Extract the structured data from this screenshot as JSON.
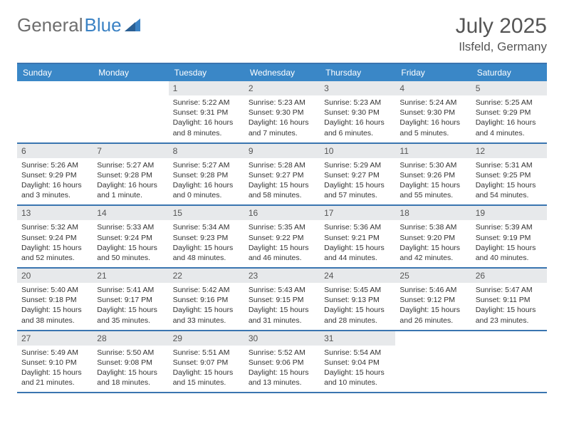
{
  "logo": {
    "part1": "General",
    "part2": "Blue"
  },
  "title": "July 2025",
  "location": "Ilsfeld, Germany",
  "colors": {
    "header_bg": "#3a87c7",
    "border": "#3a75b0",
    "daynum_bg": "#e7e9eb",
    "text": "#333333",
    "title_text": "#555555"
  },
  "dow": [
    "Sunday",
    "Monday",
    "Tuesday",
    "Wednesday",
    "Thursday",
    "Friday",
    "Saturday"
  ],
  "weeks": [
    [
      null,
      null,
      {
        "n": "1",
        "sr": "Sunrise: 5:22 AM",
        "ss": "Sunset: 9:31 PM",
        "dl1": "Daylight: 16 hours",
        "dl2": "and 8 minutes."
      },
      {
        "n": "2",
        "sr": "Sunrise: 5:23 AM",
        "ss": "Sunset: 9:30 PM",
        "dl1": "Daylight: 16 hours",
        "dl2": "and 7 minutes."
      },
      {
        "n": "3",
        "sr": "Sunrise: 5:23 AM",
        "ss": "Sunset: 9:30 PM",
        "dl1": "Daylight: 16 hours",
        "dl2": "and 6 minutes."
      },
      {
        "n": "4",
        "sr": "Sunrise: 5:24 AM",
        "ss": "Sunset: 9:30 PM",
        "dl1": "Daylight: 16 hours",
        "dl2": "and 5 minutes."
      },
      {
        "n": "5",
        "sr": "Sunrise: 5:25 AM",
        "ss": "Sunset: 9:29 PM",
        "dl1": "Daylight: 16 hours",
        "dl2": "and 4 minutes."
      }
    ],
    [
      {
        "n": "6",
        "sr": "Sunrise: 5:26 AM",
        "ss": "Sunset: 9:29 PM",
        "dl1": "Daylight: 16 hours",
        "dl2": "and 3 minutes."
      },
      {
        "n": "7",
        "sr": "Sunrise: 5:27 AM",
        "ss": "Sunset: 9:28 PM",
        "dl1": "Daylight: 16 hours",
        "dl2": "and 1 minute."
      },
      {
        "n": "8",
        "sr": "Sunrise: 5:27 AM",
        "ss": "Sunset: 9:28 PM",
        "dl1": "Daylight: 16 hours",
        "dl2": "and 0 minutes."
      },
      {
        "n": "9",
        "sr": "Sunrise: 5:28 AM",
        "ss": "Sunset: 9:27 PM",
        "dl1": "Daylight: 15 hours",
        "dl2": "and 58 minutes."
      },
      {
        "n": "10",
        "sr": "Sunrise: 5:29 AM",
        "ss": "Sunset: 9:27 PM",
        "dl1": "Daylight: 15 hours",
        "dl2": "and 57 minutes."
      },
      {
        "n": "11",
        "sr": "Sunrise: 5:30 AM",
        "ss": "Sunset: 9:26 PM",
        "dl1": "Daylight: 15 hours",
        "dl2": "and 55 minutes."
      },
      {
        "n": "12",
        "sr": "Sunrise: 5:31 AM",
        "ss": "Sunset: 9:25 PM",
        "dl1": "Daylight: 15 hours",
        "dl2": "and 54 minutes."
      }
    ],
    [
      {
        "n": "13",
        "sr": "Sunrise: 5:32 AM",
        "ss": "Sunset: 9:24 PM",
        "dl1": "Daylight: 15 hours",
        "dl2": "and 52 minutes."
      },
      {
        "n": "14",
        "sr": "Sunrise: 5:33 AM",
        "ss": "Sunset: 9:24 PM",
        "dl1": "Daylight: 15 hours",
        "dl2": "and 50 minutes."
      },
      {
        "n": "15",
        "sr": "Sunrise: 5:34 AM",
        "ss": "Sunset: 9:23 PM",
        "dl1": "Daylight: 15 hours",
        "dl2": "and 48 minutes."
      },
      {
        "n": "16",
        "sr": "Sunrise: 5:35 AM",
        "ss": "Sunset: 9:22 PM",
        "dl1": "Daylight: 15 hours",
        "dl2": "and 46 minutes."
      },
      {
        "n": "17",
        "sr": "Sunrise: 5:36 AM",
        "ss": "Sunset: 9:21 PM",
        "dl1": "Daylight: 15 hours",
        "dl2": "and 44 minutes."
      },
      {
        "n": "18",
        "sr": "Sunrise: 5:38 AM",
        "ss": "Sunset: 9:20 PM",
        "dl1": "Daylight: 15 hours",
        "dl2": "and 42 minutes."
      },
      {
        "n": "19",
        "sr": "Sunrise: 5:39 AM",
        "ss": "Sunset: 9:19 PM",
        "dl1": "Daylight: 15 hours",
        "dl2": "and 40 minutes."
      }
    ],
    [
      {
        "n": "20",
        "sr": "Sunrise: 5:40 AM",
        "ss": "Sunset: 9:18 PM",
        "dl1": "Daylight: 15 hours",
        "dl2": "and 38 minutes."
      },
      {
        "n": "21",
        "sr": "Sunrise: 5:41 AM",
        "ss": "Sunset: 9:17 PM",
        "dl1": "Daylight: 15 hours",
        "dl2": "and 35 minutes."
      },
      {
        "n": "22",
        "sr": "Sunrise: 5:42 AM",
        "ss": "Sunset: 9:16 PM",
        "dl1": "Daylight: 15 hours",
        "dl2": "and 33 minutes."
      },
      {
        "n": "23",
        "sr": "Sunrise: 5:43 AM",
        "ss": "Sunset: 9:15 PM",
        "dl1": "Daylight: 15 hours",
        "dl2": "and 31 minutes."
      },
      {
        "n": "24",
        "sr": "Sunrise: 5:45 AM",
        "ss": "Sunset: 9:13 PM",
        "dl1": "Daylight: 15 hours",
        "dl2": "and 28 minutes."
      },
      {
        "n": "25",
        "sr": "Sunrise: 5:46 AM",
        "ss": "Sunset: 9:12 PM",
        "dl1": "Daylight: 15 hours",
        "dl2": "and 26 minutes."
      },
      {
        "n": "26",
        "sr": "Sunrise: 5:47 AM",
        "ss": "Sunset: 9:11 PM",
        "dl1": "Daylight: 15 hours",
        "dl2": "and 23 minutes."
      }
    ],
    [
      {
        "n": "27",
        "sr": "Sunrise: 5:49 AM",
        "ss": "Sunset: 9:10 PM",
        "dl1": "Daylight: 15 hours",
        "dl2": "and 21 minutes."
      },
      {
        "n": "28",
        "sr": "Sunrise: 5:50 AM",
        "ss": "Sunset: 9:08 PM",
        "dl1": "Daylight: 15 hours",
        "dl2": "and 18 minutes."
      },
      {
        "n": "29",
        "sr": "Sunrise: 5:51 AM",
        "ss": "Sunset: 9:07 PM",
        "dl1": "Daylight: 15 hours",
        "dl2": "and 15 minutes."
      },
      {
        "n": "30",
        "sr": "Sunrise: 5:52 AM",
        "ss": "Sunset: 9:06 PM",
        "dl1": "Daylight: 15 hours",
        "dl2": "and 13 minutes."
      },
      {
        "n": "31",
        "sr": "Sunrise: 5:54 AM",
        "ss": "Sunset: 9:04 PM",
        "dl1": "Daylight: 15 hours",
        "dl2": "and 10 minutes."
      },
      null,
      null
    ]
  ]
}
